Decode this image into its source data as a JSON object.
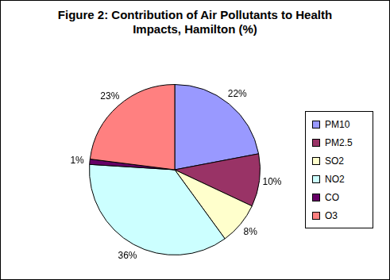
{
  "chart_data": {
    "type": "pie",
    "title": "Figure 2: Contribution of Air Pollutants to Health Impacts, Hamilton (%)",
    "categories": [
      "PM10",
      "PM2.5",
      "SO2",
      "NO2",
      "CO",
      "O3"
    ],
    "values": [
      22,
      10,
      8,
      36,
      1,
      23
    ],
    "value_labels": [
      "22%",
      "10%",
      "8%",
      "36%",
      "1%",
      "23%"
    ],
    "colors": [
      "#9999ff",
      "#993366",
      "#ffffcc",
      "#ccffff",
      "#660066",
      "#ff8080"
    ],
    "legend": "right",
    "data_labels": true
  }
}
